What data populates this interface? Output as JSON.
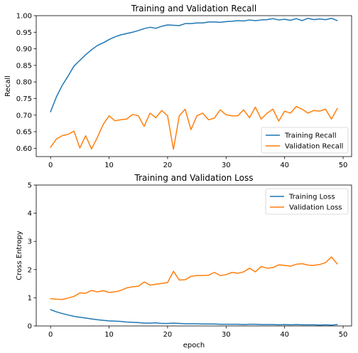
{
  "chart_data": [
    {
      "type": "line",
      "title": "Training and Validation Recall",
      "xlabel": "",
      "ylabel": "Recall",
      "xlim": [
        -2.45,
        51.45
      ],
      "ylim": [
        0.575,
        1.0
      ],
      "xticks": [
        0,
        10,
        20,
        30,
        40,
        50
      ],
      "yticks": [
        0.6,
        0.65,
        0.7,
        0.75,
        0.8,
        0.85,
        0.9,
        0.95,
        1.0
      ],
      "ytick_labels": [
        "0.60",
        "0.65",
        "0.70",
        "0.75",
        "0.80",
        "0.85",
        "0.90",
        "0.95",
        "1.00"
      ],
      "grid": false,
      "legend": "lower-right",
      "series": [
        {
          "name": "Training Recall",
          "color": "#1f77b4",
          "x": [
            0,
            1,
            2,
            3,
            4,
            5,
            6,
            7,
            8,
            9,
            10,
            11,
            12,
            13,
            14,
            15,
            16,
            17,
            18,
            19,
            20,
            21,
            22,
            23,
            24,
            25,
            26,
            27,
            28,
            29,
            30,
            31,
            32,
            33,
            34,
            35,
            36,
            37,
            38,
            39,
            40,
            41,
            42,
            43,
            44,
            45,
            46,
            47,
            48,
            49
          ],
          "values": [
            0.71,
            0.755,
            0.79,
            0.818,
            0.848,
            0.865,
            0.882,
            0.897,
            0.91,
            0.918,
            0.928,
            0.936,
            0.942,
            0.946,
            0.95,
            0.955,
            0.961,
            0.965,
            0.962,
            0.968,
            0.972,
            0.971,
            0.97,
            0.976,
            0.976,
            0.978,
            0.978,
            0.981,
            0.981,
            0.98,
            0.982,
            0.983,
            0.985,
            0.984,
            0.987,
            0.985,
            0.987,
            0.988,
            0.991,
            0.987,
            0.989,
            0.986,
            0.991,
            0.985,
            0.992,
            0.988,
            0.99,
            0.988,
            0.992,
            0.985
          ]
        },
        {
          "name": "Validation Recall",
          "color": "#ff7f0e",
          "x": [
            0,
            1,
            2,
            3,
            4,
            5,
            6,
            7,
            8,
            9,
            10,
            11,
            12,
            13,
            14,
            15,
            16,
            17,
            18,
            19,
            20,
            21,
            22,
            23,
            24,
            25,
            26,
            27,
            28,
            29,
            30,
            31,
            32,
            33,
            34,
            35,
            36,
            37,
            38,
            39,
            40,
            41,
            42,
            43,
            44,
            45,
            46,
            47,
            48,
            49
          ],
          "values": [
            0.603,
            0.628,
            0.638,
            0.642,
            0.652,
            0.601,
            0.638,
            0.598,
            0.633,
            0.672,
            0.698,
            0.683,
            0.686,
            0.688,
            0.702,
            0.698,
            0.666,
            0.706,
            0.692,
            0.714,
            0.698,
            0.597,
            0.698,
            0.718,
            0.656,
            0.698,
            0.706,
            0.686,
            0.691,
            0.716,
            0.701,
            0.698,
            0.698,
            0.716,
            0.692,
            0.724,
            0.688,
            0.706,
            0.718,
            0.682,
            0.712,
            0.706,
            0.726,
            0.718,
            0.706,
            0.714,
            0.712,
            0.718,
            0.688,
            0.72
          ]
        }
      ]
    },
    {
      "type": "line",
      "title": "Training and Validation Loss",
      "xlabel": "epoch",
      "ylabel": "Cross Entropy",
      "xlim": [
        -2.45,
        51.45
      ],
      "ylim": [
        0,
        5
      ],
      "xticks": [
        0,
        10,
        20,
        30,
        40,
        50
      ],
      "yticks": [
        0,
        1,
        2,
        3,
        4,
        5
      ],
      "ytick_labels": [
        "0",
        "1",
        "2",
        "3",
        "4",
        "5"
      ],
      "grid": false,
      "legend": "upper-right",
      "series": [
        {
          "name": "Training Loss",
          "color": "#1f77b4",
          "x": [
            0,
            1,
            2,
            3,
            4,
            5,
            6,
            7,
            8,
            9,
            10,
            11,
            12,
            13,
            14,
            15,
            16,
            17,
            18,
            19,
            20,
            21,
            22,
            23,
            24,
            25,
            26,
            27,
            28,
            29,
            30,
            31,
            32,
            33,
            34,
            35,
            36,
            37,
            38,
            39,
            40,
            41,
            42,
            43,
            44,
            45,
            46,
            47,
            48,
            49
          ],
          "values": [
            0.58,
            0.5,
            0.44,
            0.39,
            0.34,
            0.31,
            0.28,
            0.25,
            0.22,
            0.2,
            0.18,
            0.17,
            0.16,
            0.14,
            0.13,
            0.12,
            0.1,
            0.1,
            0.11,
            0.09,
            0.09,
            0.1,
            0.09,
            0.08,
            0.08,
            0.08,
            0.07,
            0.07,
            0.07,
            0.06,
            0.06,
            0.06,
            0.06,
            0.05,
            0.06,
            0.06,
            0.05,
            0.05,
            0.05,
            0.04,
            0.05,
            0.04,
            0.05,
            0.04,
            0.04,
            0.04,
            0.03,
            0.04,
            0.03,
            0.05
          ]
        },
        {
          "name": "Validation Loss",
          "color": "#ff7f0e",
          "x": [
            0,
            1,
            2,
            3,
            4,
            5,
            6,
            7,
            8,
            9,
            10,
            11,
            12,
            13,
            14,
            15,
            16,
            17,
            18,
            19,
            20,
            21,
            22,
            23,
            24,
            25,
            26,
            27,
            28,
            29,
            30,
            31,
            32,
            33,
            34,
            35,
            36,
            37,
            38,
            39,
            40,
            41,
            42,
            43,
            44,
            45,
            46,
            47,
            48,
            49
          ],
          "values": [
            0.97,
            0.95,
            0.94,
            0.99,
            1.05,
            1.17,
            1.16,
            1.26,
            1.21,
            1.25,
            1.19,
            1.21,
            1.26,
            1.35,
            1.39,
            1.41,
            1.56,
            1.45,
            1.48,
            1.51,
            1.54,
            1.94,
            1.63,
            1.64,
            1.76,
            1.79,
            1.79,
            1.8,
            1.9,
            1.79,
            1.82,
            1.9,
            1.87,
            1.92,
            2.05,
            1.92,
            2.11,
            2.05,
            2.07,
            2.17,
            2.15,
            2.12,
            2.19,
            2.21,
            2.16,
            2.15,
            2.18,
            2.25,
            2.45,
            2.2
          ]
        }
      ]
    }
  ]
}
